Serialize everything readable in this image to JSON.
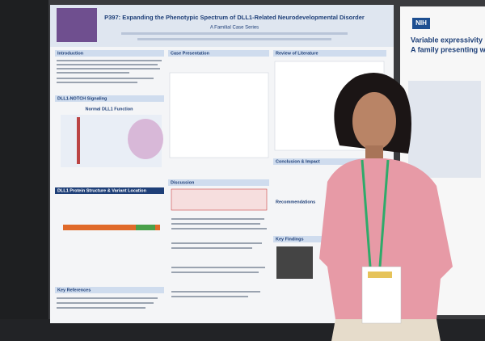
{
  "poster": {
    "title": "P397: Expanding the Phenotypic Spectrum of DLL1-Related Neurodevelopmental Disorder",
    "subtitle": "A Familial Case Series",
    "sections": {
      "introduction": "Introduction",
      "signaling": "DLL1-NOTCH Signaling",
      "normal_function": "Normal DLL1 Function",
      "protein": "DLL1 Protein Structure & Variant Location",
      "references": "Key References",
      "case": "Case Presentation",
      "discussion": "Discussion",
      "literature": "Review of Literature",
      "conclusion": "Conclusion & Impact",
      "recommendations": "Recommendations",
      "key_findings": "Key Findings"
    }
  },
  "side_poster": {
    "logo": "NIH",
    "title_line_1": "Variable expressivity",
    "title_line_2": "A family presenting w"
  }
}
